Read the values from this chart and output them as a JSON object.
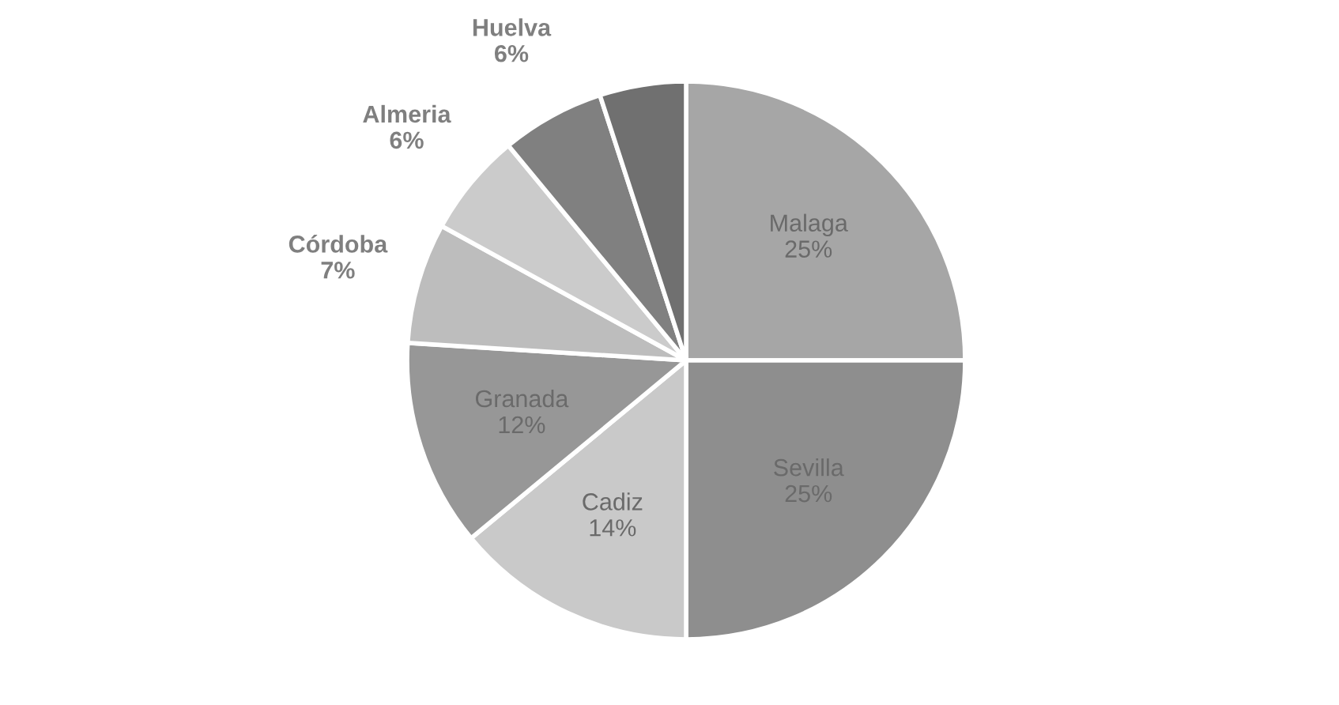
{
  "chart_data": {
    "type": "pie",
    "categories": [
      "Malaga",
      "Sevilla",
      "Cadiz",
      "Granada",
      "Córdoba",
      "Almeria",
      "Huelva",
      null
    ],
    "values": [
      25,
      25,
      14,
      12,
      7,
      6,
      6,
      5
    ],
    "value_labels": [
      "25%",
      "25%",
      "14%",
      "12%",
      "7%",
      "6%",
      "6%",
      null
    ],
    "colors": [
      "#a6a6a6",
      "#8e8e8e",
      "#c9c9c9",
      "#979797",
      "#bdbdbd",
      "#cbcbcb",
      "#808080",
      "#707070"
    ]
  }
}
